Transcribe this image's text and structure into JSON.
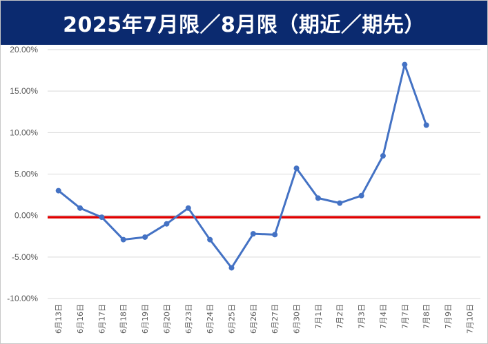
{
  "header": {
    "title": "2025年7月限／8月限（期近／期先）"
  },
  "colors": {
    "title_bg": "#0b2a6f",
    "series": "#4472c4",
    "zero_line": "#e00000",
    "grid": "#d9d9d9"
  },
  "chart_data": {
    "type": "line",
    "title": "2025年7月限／8月限（期近／期先）",
    "xlabel": "",
    "ylabel": "",
    "ylim": [
      -0.1,
      0.2
    ],
    "ytick_step": 0.05,
    "y_tick_labels": [
      "20.00%",
      "15.00%",
      "10.00%",
      "5.00%",
      "0.00%",
      "-5.00%",
      "-10.00%"
    ],
    "grid": true,
    "legend": "none",
    "categories": [
      "6月13日",
      "6月16日",
      "6月17日",
      "6月18日",
      "6月19日",
      "6月20日",
      "6月23日",
      "6月24日",
      "6月25日",
      "6月26日",
      "6月27日",
      "6月30日",
      "7月1日",
      "7月2日",
      "7月3日",
      "7月4日",
      "7月7日",
      "7月8日",
      "7月9日",
      "7月10日"
    ],
    "series": [
      {
        "values": [
          0.03,
          0.009,
          -0.002,
          -0.029,
          -0.026,
          -0.01,
          0.009,
          -0.029,
          -0.063,
          -0.022,
          -0.023,
          0.057,
          0.021,
          0.015,
          0.024,
          0.072,
          0.182,
          0.109,
          null,
          null
        ]
      }
    ],
    "reference_line": {
      "y": -0.002,
      "color": "#e00000"
    }
  }
}
